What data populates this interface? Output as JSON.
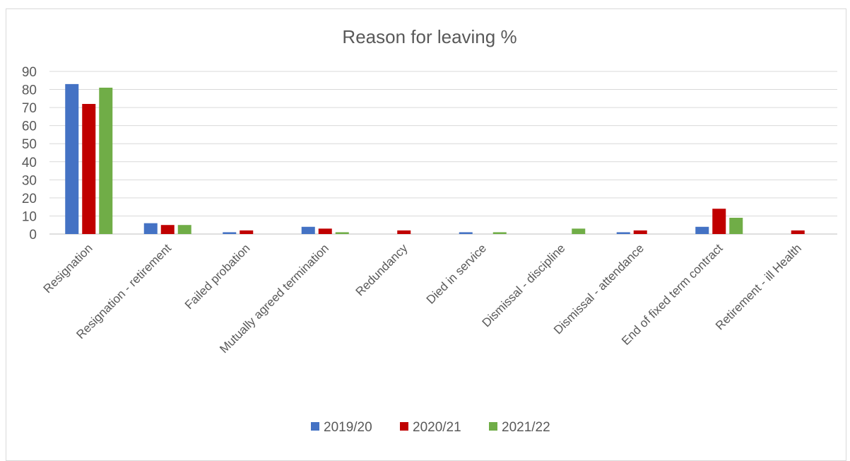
{
  "chart_data": {
    "type": "bar",
    "title": "Reason for leaving %",
    "xlabel": "",
    "ylabel": "",
    "ylim": [
      0,
      90
    ],
    "yticks": [
      0,
      10,
      20,
      30,
      40,
      50,
      60,
      70,
      80,
      90
    ],
    "grid": true,
    "legend_position": "bottom",
    "categories": [
      "Resignation",
      "Resignation - retirement",
      "Failed probation",
      "Mutually agreed termination",
      "Redundancy",
      "Died in service",
      "Dismissal - discipline",
      "Dismissal - attendance",
      "End of fixed term contract",
      "Retirement - ill Health"
    ],
    "series": [
      {
        "name": "2019/20",
        "color": "#4472C4",
        "values": [
          83,
          6,
          1,
          4,
          0,
          1,
          0,
          1,
          4,
          0
        ]
      },
      {
        "name": "2020/21",
        "color": "#C00000",
        "values": [
          72,
          5,
          2,
          3,
          2,
          0,
          0,
          2,
          14,
          2
        ]
      },
      {
        "name": "2021/22",
        "color": "#70AD47",
        "values": [
          81,
          5,
          0,
          1,
          0,
          1,
          3,
          0,
          9,
          0
        ]
      }
    ]
  }
}
